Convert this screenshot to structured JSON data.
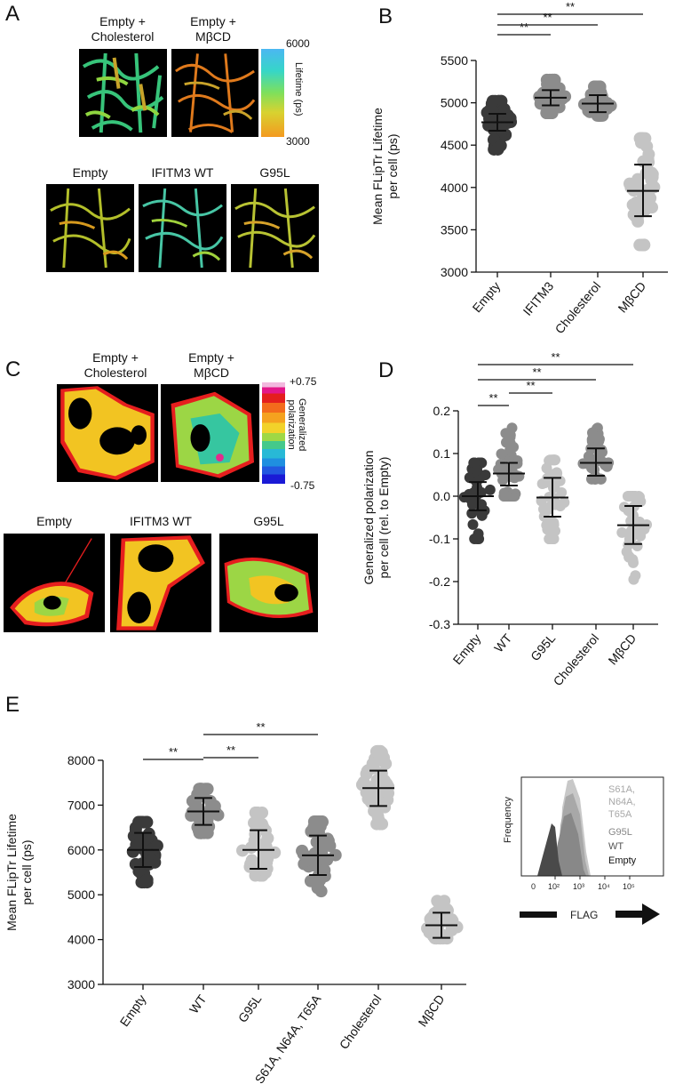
{
  "panels": {
    "A": {
      "letter": "A",
      "top_captions": [
        "Empty +\nCholesterol",
        "Empty +\nMβCD"
      ],
      "bottom_captions": [
        "Empty",
        "IFITM3 WT",
        "G95L"
      ],
      "colorbar": {
        "max": "6000",
        "min": "3000",
        "label": "Lifetime (ps)"
      }
    },
    "C": {
      "letter": "C",
      "top_captions": [
        "Empty +\nCholesterol",
        "Empty +\nMβCD"
      ],
      "bottom_captions": [
        "Empty",
        "IFITM3 WT",
        "G95L"
      ],
      "colorbar": {
        "max": "+0.75",
        "min": "-0.75",
        "label": "Generalized\npolarization"
      }
    }
  },
  "colors": {
    "dark": "#3a3a3a",
    "mid": "#8c8c8c",
    "light": "#c4c4c4"
  },
  "chart_data": [
    {
      "id": "B",
      "letter": "B",
      "type": "scatter",
      "ylabel": "Mean FLipTr Lifetime\nper cell (ps)",
      "ylim": [
        3000,
        5500
      ],
      "yticks": [
        3000,
        3500,
        4000,
        4500,
        5000,
        5500
      ],
      "categories": [
        "Empty",
        "IFITM3",
        "Cholesterol",
        "MβCD"
      ],
      "means": [
        4770,
        5060,
        4990,
        3960
      ],
      "sd_low": [
        4670,
        4970,
        4890,
        3660
      ],
      "sd_high": [
        4870,
        5150,
        5090,
        4270
      ],
      "range": [
        [
          4450,
          5020
        ],
        [
          4880,
          5270
        ],
        [
          4850,
          5190
        ],
        [
          3320,
          4580
        ]
      ],
      "shades": [
        "dark",
        "mid",
        "mid",
        "light"
      ],
      "significance": [
        {
          "from": 0,
          "to": 1,
          "label": "**"
        },
        {
          "from": 0,
          "to": 2,
          "label": "**"
        },
        {
          "from": 0,
          "to": 3,
          "label": "**"
        }
      ]
    },
    {
      "id": "D",
      "letter": "D",
      "type": "scatter",
      "ylabel": "Generalized polarization\nper cell (rel. to Empty)",
      "ylim": [
        -0.3,
        0.2
      ],
      "yticks": [
        -0.3,
        -0.2,
        -0.1,
        0.0,
        0.1,
        0.2
      ],
      "ytick_labels": [
        "-0.3",
        "-0.2",
        "-0.1",
        "0.0",
        "0.1",
        "0.2"
      ],
      "categories": [
        "Empty",
        "WT",
        "G95L",
        "Cholesterol",
        "MβCD"
      ],
      "means": [
        0.0,
        0.053,
        -0.003,
        0.078,
        -0.068
      ],
      "sd_low": [
        -0.033,
        0.025,
        -0.048,
        0.048,
        -0.112
      ],
      "sd_high": [
        0.033,
        0.078,
        0.043,
        0.112,
        -0.023
      ],
      "range": [
        [
          -0.1,
          0.078
        ],
        [
          0.0,
          0.16
        ],
        [
          -0.1,
          0.085
        ],
        [
          0.04,
          0.16
        ],
        [
          -0.195,
          0.0
        ]
      ],
      "shades": [
        "dark",
        "mid",
        "light",
        "mid",
        "light"
      ],
      "significance": [
        {
          "from": 0,
          "to": 1,
          "label": "**"
        },
        {
          "from": 1,
          "to": 2,
          "label": "**"
        },
        {
          "from": 0,
          "to": 3,
          "label": "**"
        },
        {
          "from": 0,
          "to": 4,
          "label": "**"
        }
      ]
    },
    {
      "id": "E",
      "letter": "E",
      "type": "scatter",
      "ylabel": "Mean FLipTr Lifetime\nper cell (ps)",
      "ylim": [
        3000,
        8000
      ],
      "yticks": [
        3000,
        4000,
        5000,
        6000,
        7000,
        8000
      ],
      "categories": [
        "Empty",
        "WT",
        "G95L",
        "S61A, N64A, T65A",
        "Cholesterol",
        "MβCD"
      ],
      "means": [
        6000,
        6860,
        6000,
        5880,
        7380,
        4320
      ],
      "sd_low": [
        5620,
        6560,
        5580,
        5440,
        6980,
        4040
      ],
      "sd_high": [
        6380,
        7160,
        6440,
        6320,
        7770,
        4600
      ],
      "range": [
        [
          5280,
          6620
        ],
        [
          6380,
          7360
        ],
        [
          5430,
          6830
        ],
        [
          5080,
          6630
        ],
        [
          6580,
          8200
        ],
        [
          4030,
          4860
        ]
      ],
      "shades": [
        "dark",
        "mid",
        "light",
        "mid",
        "light",
        "light"
      ],
      "significance": [
        {
          "from": 0,
          "to": 1,
          "label": "**"
        },
        {
          "from": 1,
          "to": 2,
          "label": "**"
        },
        {
          "from": 1,
          "to": 3,
          "label": "**"
        }
      ]
    }
  ],
  "inset": {
    "ylabel": "Frequency",
    "xlabel": "FLAG",
    "xticks": [
      "0",
      "10²",
      "10³",
      "10⁴",
      "10⁵"
    ],
    "legend": [
      "S61A,\nN64A,\nT65A",
      "G95L",
      "WT",
      "Empty"
    ]
  }
}
